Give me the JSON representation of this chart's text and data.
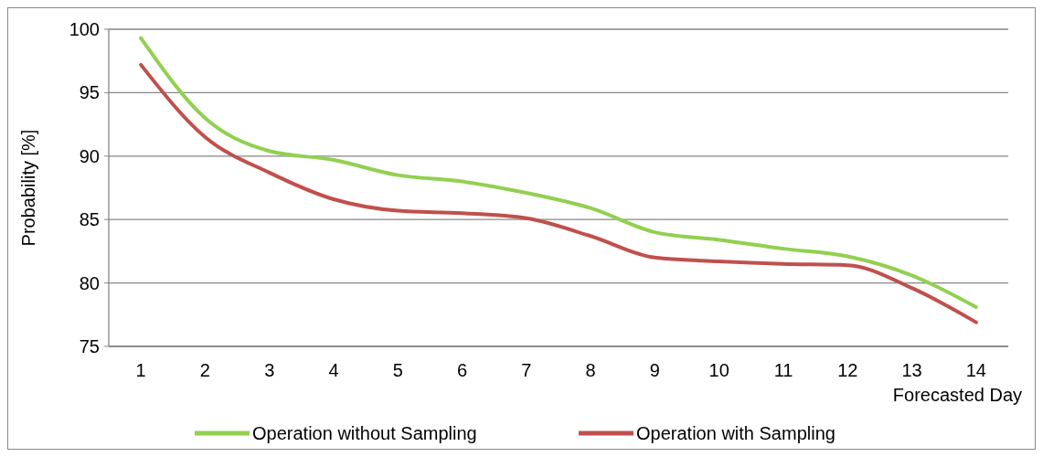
{
  "chart_data": {
    "type": "line",
    "xlabel": "Forecasted Day",
    "ylabel": "Probability [%]",
    "x": [
      1,
      2,
      3,
      4,
      5,
      6,
      7,
      8,
      9,
      10,
      11,
      12,
      13,
      14
    ],
    "xlim": [
      0.5,
      14.5
    ],
    "xticks": [
      1,
      2,
      3,
      4,
      5,
      6,
      7,
      8,
      9,
      10,
      11,
      12,
      13,
      14
    ],
    "series": [
      {
        "name": "Operation without Sampling",
        "color": "#92d050",
        "values": [
          99.3,
          93.0,
          90.4,
          89.7,
          88.5,
          88.0,
          87.1,
          85.9,
          84.0,
          83.4,
          82.7,
          82.1,
          80.6,
          78.1
        ]
      },
      {
        "name": "Operation with Sampling",
        "color": "#c0504d",
        "values": [
          97.2,
          91.5,
          88.7,
          86.6,
          85.7,
          85.5,
          85.1,
          83.7,
          82.0,
          81.7,
          81.5,
          81.4,
          79.6,
          76.9
        ]
      }
    ],
    "ylim": [
      75,
      100
    ],
    "yticks": [
      75,
      80,
      85,
      90,
      95,
      100
    ],
    "grid": "y",
    "legend": "bottom",
    "marker": "none",
    "line_style": "solid"
  }
}
